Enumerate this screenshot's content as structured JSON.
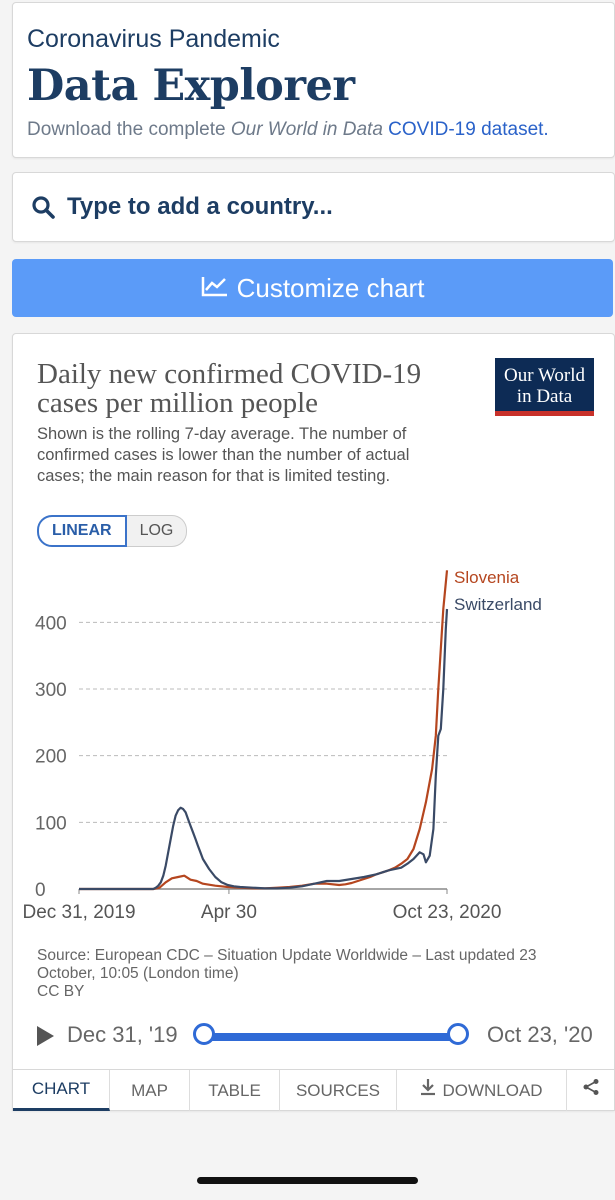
{
  "header": {
    "pre_title": "Coronavirus Pandemic",
    "title": "Data Explorer",
    "subtitle_prefix": "Download the complete ",
    "subtitle_em": "Our World in Data",
    "subtitle_link": "COVID-19 dataset."
  },
  "search": {
    "placeholder": "Type to add a country..."
  },
  "customize": {
    "label": "Customize chart"
  },
  "chart": {
    "title": "Daily new confirmed COVID-19 cases per million people",
    "subtitle": "Shown is the rolling 7-day average. The number of confirmed cases is lower than the number of actual cases; the main reason for that is limited testing.",
    "logo_line1": "Our World",
    "logo_line2": "in Data",
    "scale_linear": "LINEAR",
    "scale_log": "LOG",
    "source": "Source: European CDC – Situation Update Worldwide – Last updated 23 October, 10:05 (London time)",
    "license": "CC BY"
  },
  "timeline": {
    "start": "Dec 31, '19",
    "end": "Oct 23, '20"
  },
  "tabs": [
    "CHART",
    "MAP",
    "TABLE",
    "SOURCES",
    "DOWNLOAD"
  ],
  "colors": {
    "slovenia": "#b5461f",
    "switzerland": "#3a4a66",
    "accent": "#5b9bf8"
  },
  "chart_data": {
    "type": "line",
    "title": "Daily new confirmed COVID-19 cases per million people",
    "xlabel": "",
    "ylabel": "",
    "xlim": [
      0,
      297
    ],
    "ylim": [
      0,
      480
    ],
    "yticks": [
      0,
      100,
      200,
      300,
      400
    ],
    "ytick_labels": [
      "0",
      "100",
      "200",
      "300",
      "400"
    ],
    "xticks": [
      0,
      121,
      297
    ],
    "xtick_labels": [
      "Dec 31, 2019",
      "Apr 30",
      "Oct 23, 2020"
    ],
    "grid": true,
    "legend": "inline-end",
    "series": [
      {
        "name": "Slovenia",
        "x": [
          0,
          60,
          65,
          70,
          75,
          80,
          85,
          90,
          95,
          100,
          110,
          120,
          130,
          140,
          150,
          160,
          170,
          180,
          190,
          200,
          210,
          215,
          220,
          225,
          230,
          235,
          240,
          245,
          250,
          255,
          260,
          265,
          270,
          275,
          280,
          285,
          288,
          290,
          292,
          294,
          297
        ],
        "values": [
          0,
          0,
          2,
          10,
          16,
          18,
          20,
          14,
          12,
          8,
          5,
          3,
          2,
          1,
          1,
          2,
          3,
          5,
          8,
          8,
          6,
          7,
          9,
          12,
          15,
          18,
          22,
          25,
          28,
          32,
          38,
          45,
          60,
          90,
          130,
          180,
          230,
          300,
          360,
          420,
          478
        ]
      },
      {
        "name": "Switzerland",
        "x": [
          0,
          60,
          62,
          64,
          66,
          68,
          70,
          72,
          74,
          76,
          78,
          80,
          82,
          84,
          86,
          88,
          90,
          92,
          94,
          96,
          98,
          100,
          105,
          110,
          115,
          120,
          125,
          130,
          140,
          150,
          160,
          170,
          180,
          190,
          200,
          210,
          220,
          230,
          240,
          250,
          260,
          265,
          270,
          275,
          278,
          280,
          283,
          286,
          288,
          290,
          292,
          294,
          296,
          297
        ],
        "values": [
          0,
          0,
          2,
          5,
          10,
          20,
          35,
          55,
          75,
          95,
          110,
          118,
          122,
          120,
          115,
          105,
          95,
          85,
          75,
          65,
          55,
          45,
          30,
          18,
          10,
          6,
          4,
          3,
          2,
          1,
          1,
          2,
          4,
          8,
          12,
          12,
          15,
          18,
          22,
          28,
          32,
          38,
          45,
          55,
          52,
          40,
          50,
          90,
          170,
          230,
          240,
          300,
          390,
          420
        ]
      }
    ]
  }
}
